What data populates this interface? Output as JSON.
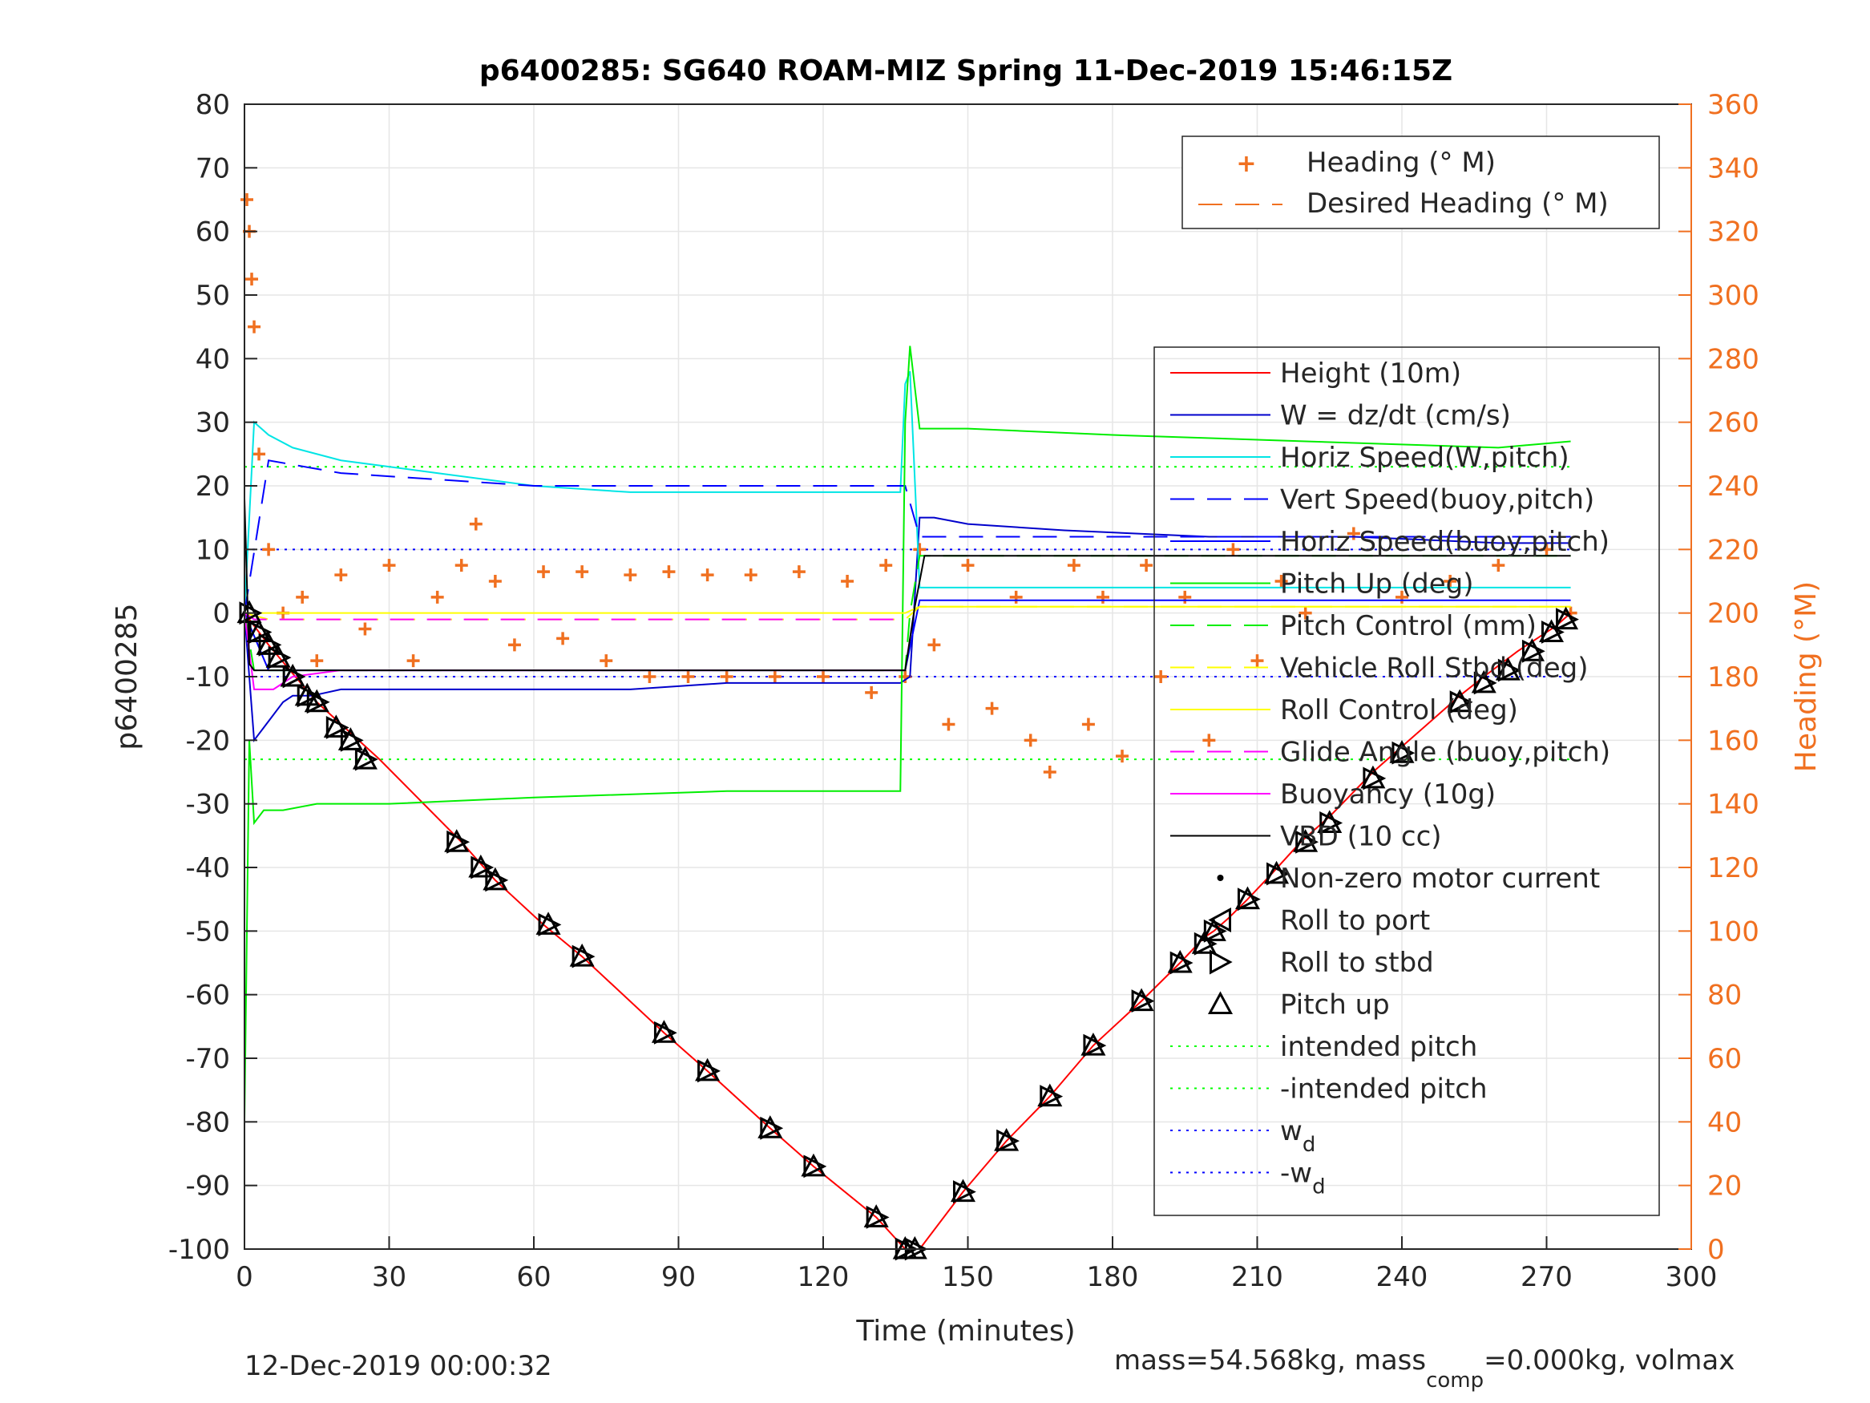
{
  "chart_data": {
    "type": "line",
    "title": "p6400285: SG640 ROAM-MIZ Spring 11-Dec-2019 15:46:15Z",
    "xlabel": "Time (minutes)",
    "ylabel": "p6400285",
    "y2label": "Heading (°M)",
    "xlim": [
      0,
      300
    ],
    "ylim": [
      -100,
      80
    ],
    "y2lim": [
      0,
      360
    ],
    "xticks": [
      "0",
      "30",
      "60",
      "90",
      "120",
      "150",
      "180",
      "210",
      "240",
      "270",
      "300"
    ],
    "yticks": [
      "-100",
      "-90",
      "-80",
      "-70",
      "-60",
      "-50",
      "-40",
      "-30",
      "-20",
      "-10",
      "0",
      "10",
      "20",
      "30",
      "40",
      "50",
      "60",
      "70",
      "80"
    ],
    "y2ticks": [
      "0",
      "20",
      "40",
      "60",
      "80",
      "100",
      "120",
      "140",
      "160",
      "180",
      "200",
      "220",
      "240",
      "260",
      "280",
      "300",
      "320",
      "340",
      "360"
    ],
    "grid": true,
    "colors": {
      "height": "#ff0000",
      "w": "#0000cc",
      "horiz_speed": "#00e5e5",
      "vert_speed": "#0000ff",
      "pitch": "#00ee00",
      "roll": "#ffff00",
      "glide": "#ff00ff",
      "buoyancy": "#ff00ff",
      "vbd": "#000000",
      "heading": "#f07020",
      "intended": "#00ff00",
      "wd": "#0000ff"
    },
    "series": [
      {
        "name": "Height (10m)",
        "x": [
          0,
          5,
          15,
          28,
          45,
          52,
          62,
          70,
          87,
          96,
          109,
          118,
          131,
          137,
          138,
          140,
          149,
          158,
          167,
          176,
          186,
          194,
          199,
          201,
          204,
          208,
          213,
          219,
          225,
          234,
          240,
          252,
          257,
          264,
          268,
          272,
          275
        ],
        "y": [
          0,
          -5,
          -14,
          -23,
          -36,
          -42,
          -49,
          -54,
          -66,
          -72,
          -81,
          -87,
          -95,
          -100,
          -100,
          -100,
          -91,
          -83,
          -76,
          -68,
          -61,
          -55,
          -51,
          -50,
          -48,
          -45,
          -41,
          -36,
          -32,
          -25,
          -21,
          -13,
          -10,
          -6,
          -4,
          -2,
          0
        ]
      },
      {
        "name": "W = dz/dt (cm/s)",
        "x": [
          0,
          2,
          4,
          6,
          8,
          10,
          14,
          20,
          40,
          60,
          80,
          100,
          120,
          132,
          136,
          138,
          140,
          143,
          150,
          170,
          200,
          230,
          260,
          275
        ],
        "y": [
          0,
          -20,
          -18,
          -16,
          -14,
          -13,
          -13,
          -12,
          -12,
          -12,
          -12,
          -11,
          -11,
          -11,
          -11,
          -10,
          15,
          15,
          14,
          13,
          12,
          12,
          11,
          11
        ]
      },
      {
        "name": "Horiz Speed(W,pitch)",
        "x": [
          0,
          2,
          5,
          10,
          20,
          40,
          60,
          80,
          100,
          120,
          130,
          134,
          136,
          137,
          138,
          140,
          150,
          180,
          220,
          275
        ],
        "y": [
          0,
          30,
          28,
          26,
          24,
          22,
          20,
          19,
          19,
          19,
          19,
          19,
          19,
          36,
          38,
          4,
          4,
          4,
          4,
          4
        ]
      },
      {
        "name": "Vert Speed(buoy,pitch)",
        "x": [
          0,
          5,
          20,
          60,
          100,
          137,
          140,
          180,
          220,
          275
        ],
        "y": [
          0,
          24,
          22,
          20,
          20,
          20,
          12,
          12,
          12,
          12
        ]
      },
      {
        "name": "Horiz Speed(buoy,pitch)",
        "x": [
          0,
          5,
          20,
          60,
          100,
          137,
          140,
          180,
          220,
          275
        ],
        "y": [
          0,
          -9,
          -9,
          -9,
          -9,
          -9,
          2,
          2,
          2,
          2
        ]
      },
      {
        "name": "Pitch Up (deg)",
        "x": [
          0,
          1,
          2,
          4,
          8,
          15,
          30,
          60,
          100,
          130,
          136,
          137,
          138,
          140,
          142,
          150,
          180,
          220,
          260,
          275
        ],
        "y": [
          -80,
          -20,
          -33,
          -31,
          -31,
          -30,
          -30,
          -29,
          -28,
          -28,
          -28,
          30,
          42,
          29,
          29,
          29,
          28,
          27,
          26,
          27
        ]
      },
      {
        "name": "Pitch Control (mm)",
        "x": [
          0,
          2,
          10,
          60,
          137,
          138,
          140,
          180,
          275
        ],
        "y": [
          0,
          -9,
          -9,
          -9,
          -9,
          0,
          9,
          9,
          9
        ]
      },
      {
        "name": "Vehicle Roll Stbd (deg)",
        "x": [
          0,
          5,
          40,
          100,
          137,
          140,
          200,
          275
        ],
        "y": [
          0,
          -1,
          -1,
          -1,
          -1,
          1,
          1,
          1
        ]
      },
      {
        "name": "Roll Control (deg)",
        "x": [
          0,
          5,
          40,
          100,
          137,
          140,
          200,
          275
        ],
        "y": [
          0,
          0,
          0,
          0,
          0,
          1,
          1,
          1
        ]
      },
      {
        "name": "Glide Angle (buoy,pitch)",
        "x": [
          0,
          2,
          10,
          60,
          137
        ],
        "y": [
          0,
          -1,
          -1,
          -1,
          -1
        ]
      },
      {
        "name": "Buoyancy (10g)",
        "x": [
          0,
          2,
          6,
          10,
          20,
          60,
          100,
          137
        ],
        "y": [
          0,
          -12,
          -12,
          -10,
          -9,
          -9,
          -9,
          -9
        ]
      },
      {
        "name": "VBD (10 cc)",
        "x": [
          0,
          1,
          2,
          20,
          60,
          100,
          137,
          139,
          141,
          200,
          275
        ],
        "y": [
          18,
          -8,
          -9,
          -9,
          -9,
          -9,
          -9,
          1,
          9,
          9,
          9
        ]
      }
    ],
    "reference_lines": [
      {
        "name": "intended pitch",
        "y": 23
      },
      {
        "name": "-intended pitch",
        "y": -23
      },
      {
        "name": "w_d",
        "y": 10
      },
      {
        "name": "-w_d",
        "y": -10
      }
    ],
    "heading": {
      "name": "Heading (° M)",
      "x": [
        0.5,
        1,
        1.5,
        2,
        3,
        5,
        8,
        12,
        15,
        20,
        25,
        30,
        35,
        40,
        45,
        48,
        52,
        56,
        62,
        66,
        70,
        75,
        80,
        84,
        88,
        92,
        96,
        100,
        105,
        110,
        115,
        120,
        125,
        130,
        133,
        137,
        140,
        143,
        146,
        150,
        155,
        160,
        163,
        167,
        172,
        175,
        178,
        182,
        187,
        190,
        195,
        200,
        205,
        210,
        215,
        220,
        230,
        240,
        250,
        260,
        270,
        275
      ],
      "y": [
        330,
        320,
        305,
        290,
        250,
        220,
        200,
        205,
        185,
        212,
        195,
        215,
        185,
        205,
        215,
        228,
        210,
        190,
        213,
        192,
        213,
        185,
        212,
        180,
        213,
        180,
        212,
        180,
        212,
        180,
        213,
        180,
        210,
        175,
        215,
        180,
        220,
        190,
        165,
        215,
        170,
        205,
        160,
        150,
        215,
        165,
        205,
        155,
        215,
        180,
        205,
        160,
        220,
        185,
        210,
        200,
        225,
        205,
        210,
        215,
        220,
        200
      ]
    },
    "desired_heading": {
      "name": "Desired Heading (° M)"
    },
    "markers": {
      "legend": [
        "Non-zero motor current",
        "Roll to port",
        "Roll to stbd",
        "Pitch up"
      ],
      "x": [
        1,
        3,
        5,
        7,
        10,
        13,
        15,
        19,
        22,
        25,
        44,
        49,
        52,
        63,
        70,
        87,
        96,
        109,
        118,
        131,
        137,
        139,
        149,
        158,
        167,
        176,
        186,
        194,
        199,
        201,
        208,
        214,
        220,
        225,
        234,
        240,
        252,
        257,
        262,
        267,
        271,
        274
      ],
      "y": [
        0,
        -3,
        -5,
        -7,
        -10,
        -13,
        -14,
        -18,
        -20,
        -23,
        -36,
        -40,
        -42,
        -49,
        -54,
        -66,
        -72,
        -81,
        -87,
        -95,
        -100,
        -100,
        -91,
        -83,
        -76,
        -68,
        -61,
        -55,
        -52,
        -50,
        -45,
        -41,
        -36,
        -33,
        -26,
        -22,
        -14,
        -11,
        -9,
        -6,
        -3,
        -1
      ]
    },
    "legend_location": "top-right"
  },
  "footer": {
    "date": "12-Dec-2019 00:00:32",
    "mass_prefix": "mass=54.568kg, mass",
    "mass_sub": "comp",
    "mass_suffix": "=0.000kg, volmax"
  }
}
